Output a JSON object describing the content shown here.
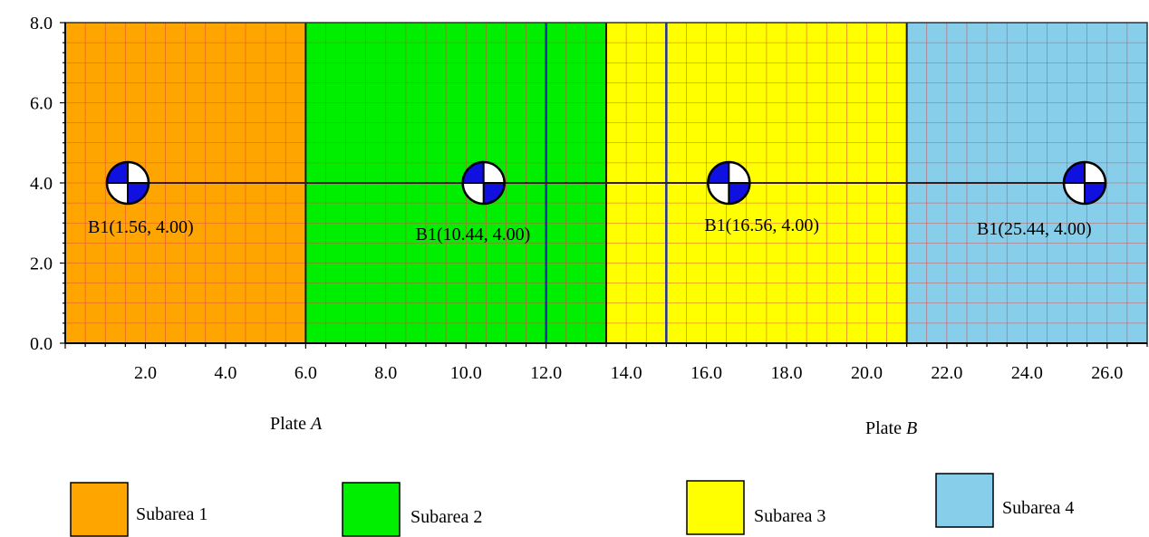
{
  "chart_data": {
    "type": "diagram",
    "xlim": [
      0,
      27
    ],
    "ylim": [
      0,
      8
    ],
    "x_ticks": [
      "2.0",
      "4.0",
      "6.0",
      "8.0",
      "10.0",
      "12.0",
      "14.0",
      "16.0",
      "18.0",
      "20.0",
      "22.0",
      "24.0",
      "26.0"
    ],
    "x_tick_values": [
      2,
      4,
      6,
      8,
      10,
      12,
      14,
      16,
      18,
      20,
      22,
      24,
      26
    ],
    "y_ticks": [
      "0.0",
      "2.0",
      "4.0",
      "6.0",
      "8.0"
    ],
    "y_tick_values": [
      0,
      2,
      4,
      6,
      8
    ],
    "grid": true,
    "grid_step": 0.5,
    "regions": [
      {
        "subarea": 1,
        "x_from": 0,
        "x_to": 6,
        "color": "#FFA500"
      },
      {
        "subarea": 2,
        "x_from": 6,
        "x_to": 13.5,
        "color": "#00EE00"
      },
      {
        "subarea": 3,
        "x_from": 13.5,
        "x_to": 21,
        "color": "#FFFF00"
      },
      {
        "subarea": 4,
        "x_from": 21,
        "x_to": 27,
        "color": "#87CEEB"
      }
    ],
    "plate_boundaries": [
      12,
      15
    ],
    "subarea_boundaries": [
      6,
      13.5,
      21
    ],
    "beam_line_y": 4,
    "points": [
      {
        "x": 1.56,
        "y": 4.0,
        "label": "B1(1.56, 4.00)"
      },
      {
        "x": 10.44,
        "y": 4.0,
        "label": "B1(10.44, 4.00)"
      },
      {
        "x": 16.56,
        "y": 4.0,
        "label": "B1(16.56, 4.00)"
      },
      {
        "x": 25.44,
        "y": 4.0,
        "label": "B1(25.44, 4.00)"
      }
    ]
  },
  "plates": [
    {
      "prefix": "Plate ",
      "name": "A"
    },
    {
      "prefix": "Plate ",
      "name": "B"
    }
  ],
  "legend": [
    {
      "label": "Subarea 1",
      "color": "#FFA500"
    },
    {
      "label": "Subarea 2",
      "color": "#00EE00"
    },
    {
      "label": "Subarea 3",
      "color": "#FFFF00"
    },
    {
      "label": "Subarea 4",
      "color": "#87CEEB"
    }
  ]
}
